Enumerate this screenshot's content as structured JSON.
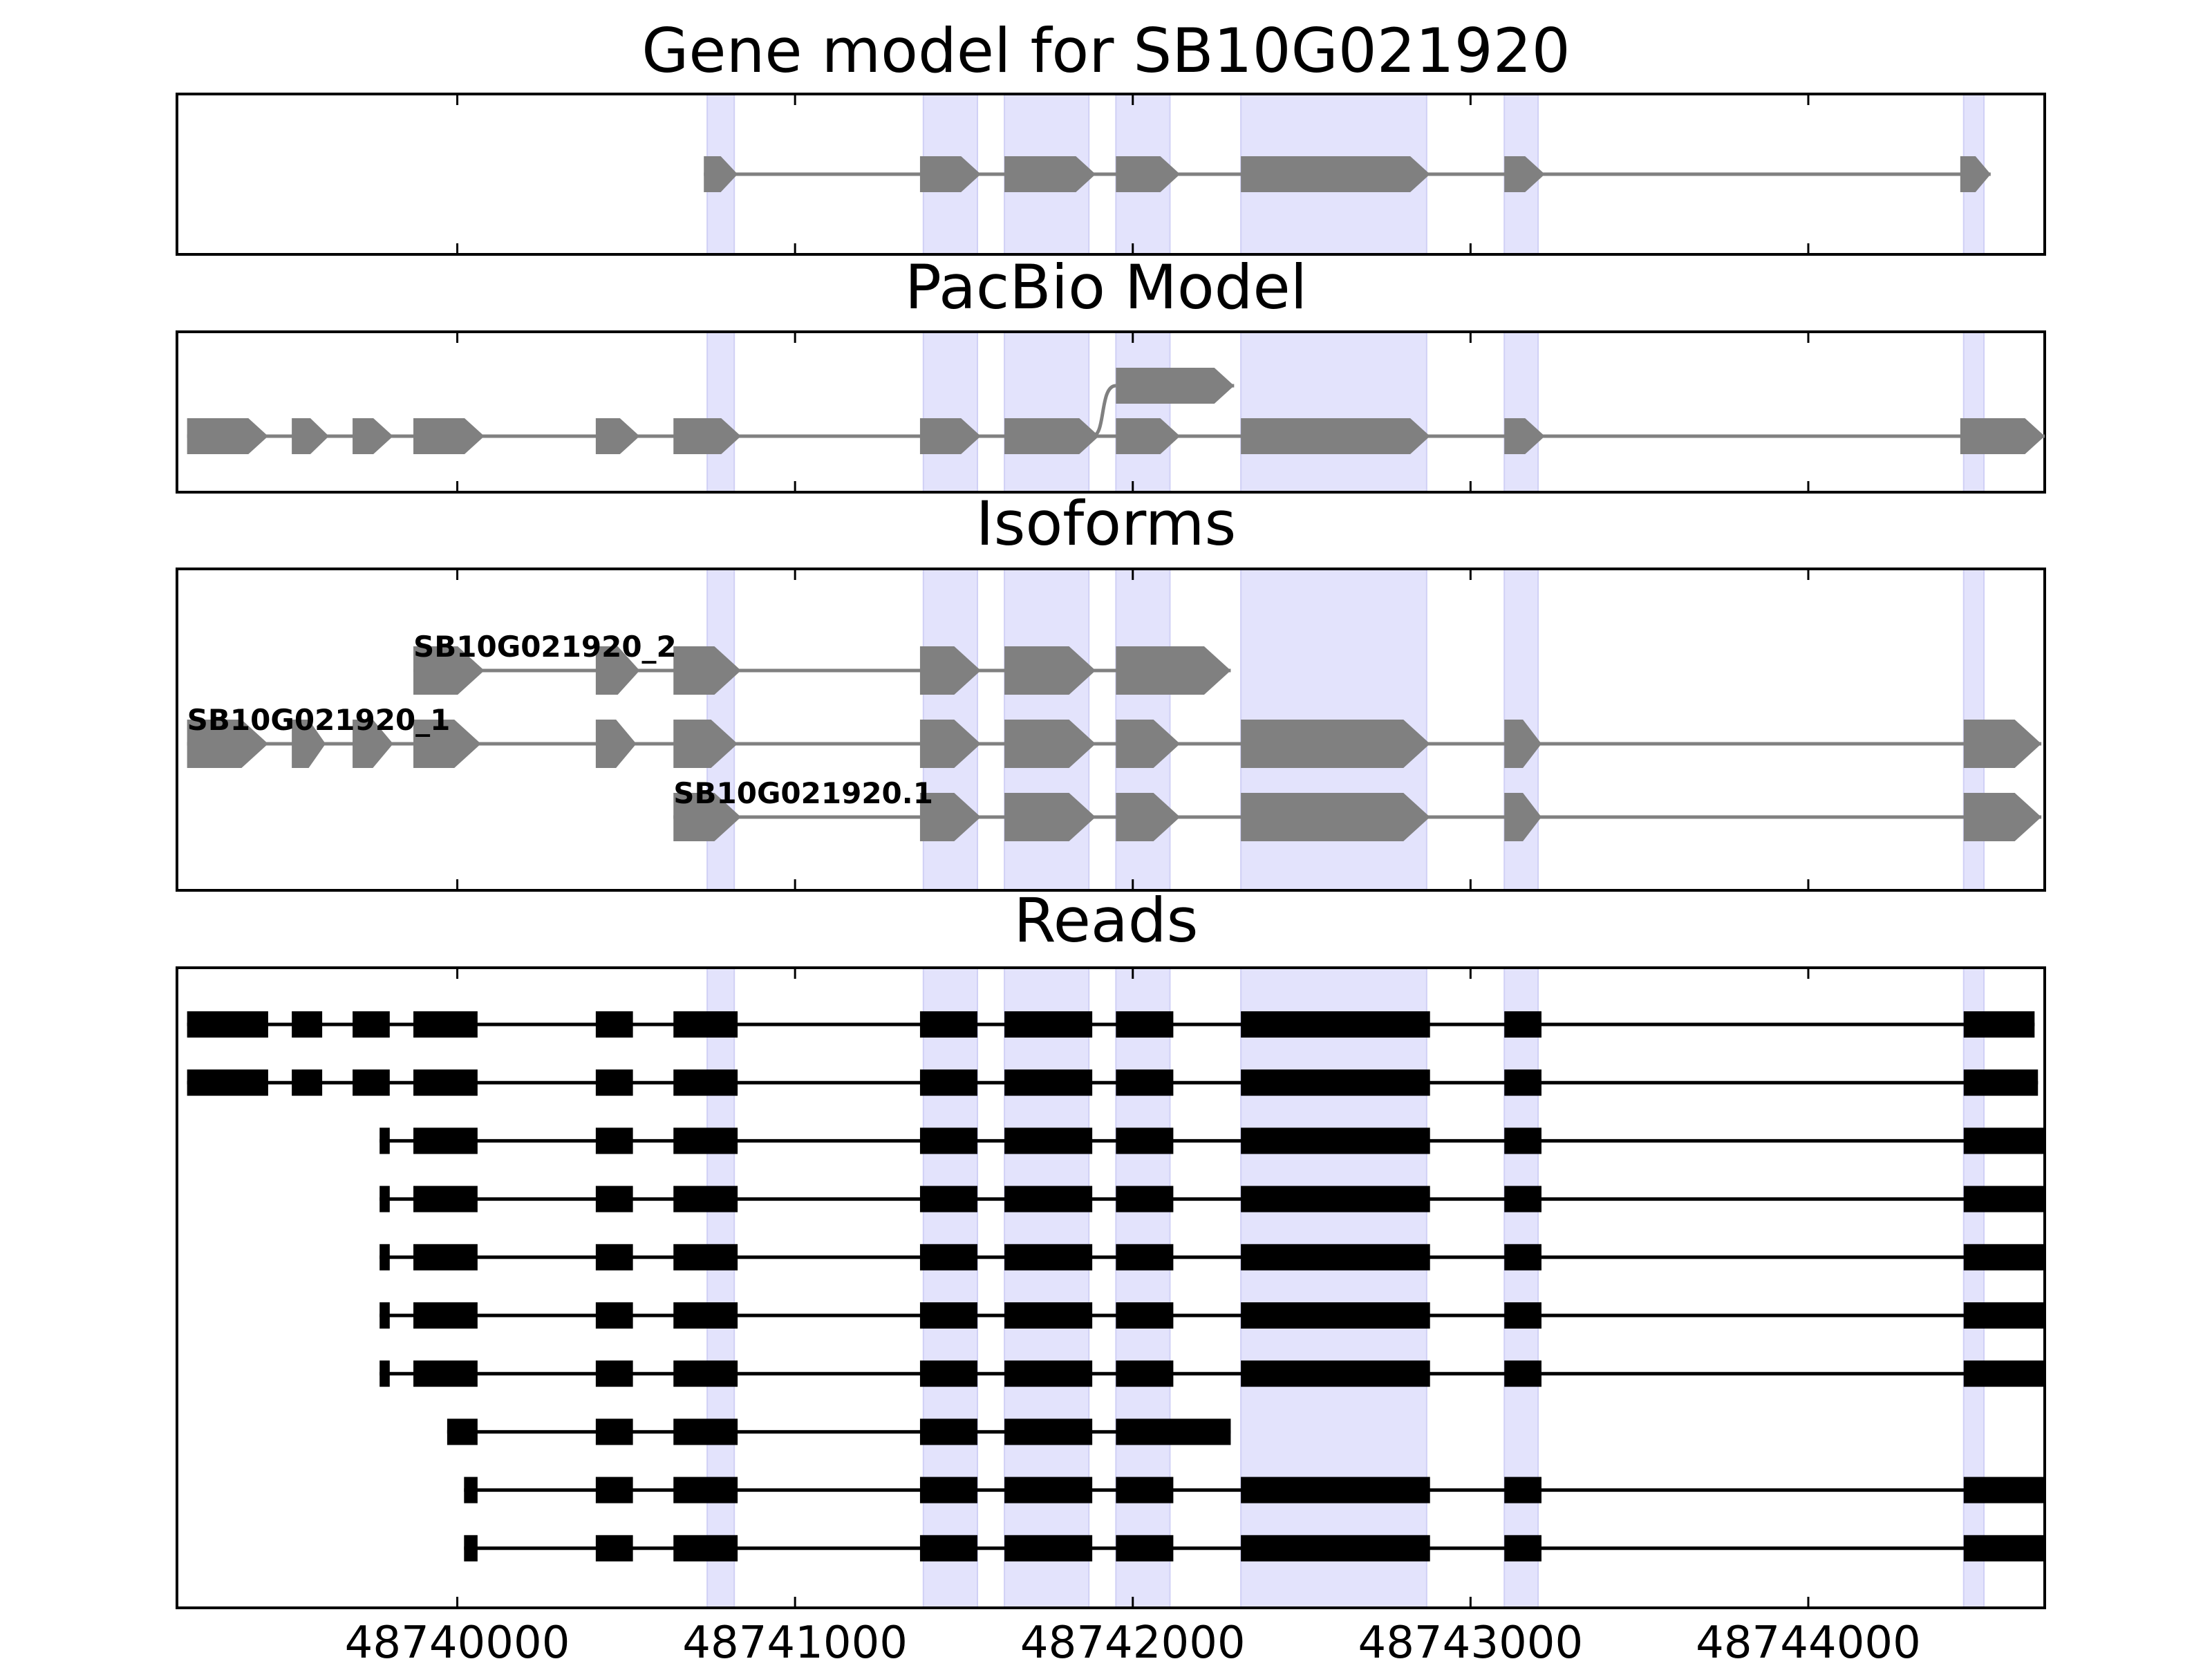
{
  "figure": {
    "xmin": 48739170,
    "xmax": 48744700,
    "x_ticks": [
      48740000,
      48741000,
      48742000,
      48743000,
      48744000
    ],
    "x_tick_labels": [
      "48740000",
      "48741000",
      "48742000",
      "48743000",
      "48744000"
    ],
    "colors": {
      "feature": "#808080",
      "intron": "#808080",
      "read": "#000000",
      "highlight": "#e3e3fc",
      "axes": "#000000"
    },
    "highlight_regions": [
      [
        48740740,
        48740820
      ],
      [
        48741380,
        48741540
      ],
      [
        48741620,
        48741870
      ],
      [
        48741950,
        48742110
      ],
      [
        48742320,
        48742870
      ],
      [
        48743100,
        48743200
      ],
      [
        48744460,
        48744520
      ]
    ]
  },
  "panels": {
    "gene_model": {
      "title": "Gene model for SB10G021920",
      "tracks": [
        {
          "exons": [
            [
              48740730,
              48740830
            ],
            [
              48741370,
              48741550
            ],
            [
              48741620,
              48741890
            ],
            [
              48741950,
              48742140
            ],
            [
              48742320,
              48742880
            ],
            [
              48743100,
              48743220
            ],
            [
              48744450,
              48744540
            ]
          ]
        }
      ]
    },
    "pacbio_model": {
      "title": "PacBio Model",
      "tracks": [
        {
          "lane": 1,
          "exons": [
            [
              48739200,
              48739440
            ],
            [
              48739510,
              48739620
            ],
            [
              48739690,
              48739810
            ],
            [
              48739870,
              48740080
            ],
            [
              48740410,
              48740540
            ],
            [
              48740640,
              48740840
            ],
            [
              48741370,
              48741550
            ],
            [
              48741620,
              48741900
            ],
            [
              48741950,
              48742140
            ],
            [
              48742320,
              48742880
            ],
            [
              48743100,
              48743220
            ],
            [
              48744450,
              48744700
            ]
          ]
        },
        {
          "lane": 0,
          "exons": [
            [
              48741950,
              48742300
            ]
          ],
          "connector": [
            48741880,
            48741950
          ]
        }
      ]
    },
    "isoforms": {
      "title": "Isoforms",
      "tracks": [
        {
          "label": "SB10G021920_2",
          "lane": 0,
          "exons": [
            [
              48739870,
              48740080
            ],
            [
              48740410,
              48740540
            ],
            [
              48740640,
              48740840
            ],
            [
              48741370,
              48741550
            ],
            [
              48741620,
              48741890
            ],
            [
              48741950,
              48742290
            ]
          ]
        },
        {
          "label": "SB10G021920_1",
          "lane": 1,
          "exons": [
            [
              48739200,
              48739440
            ],
            [
              48739510,
              48739610
            ],
            [
              48739690,
              48739810
            ],
            [
              48739870,
              48740070
            ],
            [
              48740410,
              48740530
            ],
            [
              48740640,
              48740830
            ],
            [
              48741370,
              48741550
            ],
            [
              48741620,
              48741890
            ],
            [
              48741950,
              48742140
            ],
            [
              48742320,
              48742880
            ],
            [
              48743100,
              48743210
            ],
            [
              48744460,
              48744690
            ]
          ]
        },
        {
          "label": "SB10G021920.1",
          "lane": 2,
          "exons": [
            [
              48740640,
              48740840
            ],
            [
              48741370,
              48741550
            ],
            [
              48741620,
              48741890
            ],
            [
              48741950,
              48742140
            ],
            [
              48742320,
              48742880
            ],
            [
              48743100,
              48743210
            ],
            [
              48744460,
              48744690
            ]
          ]
        }
      ]
    },
    "reads": {
      "title": "Reads",
      "tracks": [
        {
          "exons": [
            [
              48739200,
              48739440
            ],
            [
              48739510,
              48739600
            ],
            [
              48739690,
              48739800
            ],
            [
              48739870,
              48740060
            ],
            [
              48740410,
              48740520
            ],
            [
              48740640,
              48740830
            ],
            [
              48741370,
              48741540
            ],
            [
              48741620,
              48741880
            ],
            [
              48741950,
              48742120
            ],
            [
              48742320,
              48742880
            ],
            [
              48743100,
              48743210
            ],
            [
              48744460,
              48744670
            ]
          ]
        },
        {
          "exons": [
            [
              48739200,
              48739440
            ],
            [
              48739510,
              48739600
            ],
            [
              48739690,
              48739800
            ],
            [
              48739870,
              48740060
            ],
            [
              48740410,
              48740520
            ],
            [
              48740640,
              48740830
            ],
            [
              48741370,
              48741540
            ],
            [
              48741620,
              48741880
            ],
            [
              48741950,
              48742120
            ],
            [
              48742320,
              48742880
            ],
            [
              48743100,
              48743210
            ],
            [
              48744460,
              48744680
            ]
          ]
        },
        {
          "exons": [
            [
              48739770,
              48739800
            ],
            [
              48739870,
              48740060
            ],
            [
              48740410,
              48740520
            ],
            [
              48740640,
              48740830
            ],
            [
              48741370,
              48741540
            ],
            [
              48741620,
              48741880
            ],
            [
              48741950,
              48742120
            ],
            [
              48742320,
              48742880
            ],
            [
              48743100,
              48743210
            ],
            [
              48744460,
              48744700
            ]
          ]
        },
        {
          "exons": [
            [
              48739770,
              48739800
            ],
            [
              48739870,
              48740060
            ],
            [
              48740410,
              48740520
            ],
            [
              48740640,
              48740830
            ],
            [
              48741370,
              48741540
            ],
            [
              48741620,
              48741880
            ],
            [
              48741950,
              48742120
            ],
            [
              48742320,
              48742880
            ],
            [
              48743100,
              48743210
            ],
            [
              48744460,
              48744700
            ]
          ]
        },
        {
          "exons": [
            [
              48739770,
              48739800
            ],
            [
              48739870,
              48740060
            ],
            [
              48740410,
              48740520
            ],
            [
              48740640,
              48740830
            ],
            [
              48741370,
              48741540
            ],
            [
              48741620,
              48741880
            ],
            [
              48741950,
              48742120
            ],
            [
              48742320,
              48742880
            ],
            [
              48743100,
              48743210
            ],
            [
              48744460,
              48744700
            ]
          ]
        },
        {
          "exons": [
            [
              48739770,
              48739800
            ],
            [
              48739870,
              48740060
            ],
            [
              48740410,
              48740520
            ],
            [
              48740640,
              48740830
            ],
            [
              48741370,
              48741540
            ],
            [
              48741620,
              48741880
            ],
            [
              48741950,
              48742120
            ],
            [
              48742320,
              48742880
            ],
            [
              48743100,
              48743210
            ],
            [
              48744460,
              48744700
            ]
          ]
        },
        {
          "exons": [
            [
              48739770,
              48739800
            ],
            [
              48739870,
              48740060
            ],
            [
              48740410,
              48740520
            ],
            [
              48740640,
              48740830
            ],
            [
              48741370,
              48741540
            ],
            [
              48741620,
              48741880
            ],
            [
              48741950,
              48742120
            ],
            [
              48742320,
              48742880
            ],
            [
              48743100,
              48743210
            ],
            [
              48744460,
              48744700
            ]
          ]
        },
        {
          "exons": [
            [
              48739970,
              48740060
            ],
            [
              48740410,
              48740520
            ],
            [
              48740640,
              48740830
            ],
            [
              48741370,
              48741540
            ],
            [
              48741620,
              48741880
            ],
            [
              48741950,
              48742290
            ]
          ]
        },
        {
          "exons": [
            [
              48740020,
              48740060
            ],
            [
              48740410,
              48740520
            ],
            [
              48740640,
              48740830
            ],
            [
              48741370,
              48741540
            ],
            [
              48741620,
              48741880
            ],
            [
              48741950,
              48742120
            ],
            [
              48742320,
              48742880
            ],
            [
              48743100,
              48743210
            ],
            [
              48744460,
              48744700
            ]
          ]
        },
        {
          "exons": [
            [
              48740020,
              48740060
            ],
            [
              48740410,
              48740520
            ],
            [
              48740640,
              48740830
            ],
            [
              48741370,
              48741540
            ],
            [
              48741620,
              48741880
            ],
            [
              48741950,
              48742120
            ],
            [
              48742320,
              48742880
            ],
            [
              48743100,
              48743210
            ],
            [
              48744460,
              48744700
            ]
          ]
        }
      ]
    }
  }
}
